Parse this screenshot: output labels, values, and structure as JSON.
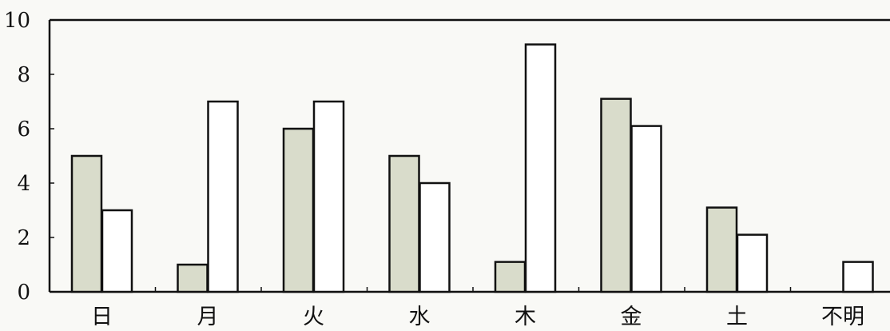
{
  "chart_data": {
    "type": "bar",
    "title": "",
    "xlabel": "",
    "ylabel": "",
    "categories": [
      "日",
      "月",
      "火",
      "水",
      "木",
      "金",
      "土",
      "不明"
    ],
    "series": [
      {
        "values": [
          5,
          1,
          6,
          5,
          1.1,
          7.1,
          3.1,
          0
        ],
        "color": "#d9dccb"
      },
      {
        "values": [
          3,
          7,
          7,
          4,
          9.1,
          6.1,
          2.1,
          1.1
        ],
        "color": "#ffffff"
      }
    ],
    "ylim": [
      0,
      10
    ],
    "yticks": [
      0,
      2,
      4,
      6,
      8,
      10
    ],
    "grid": false,
    "legend": "none"
  }
}
